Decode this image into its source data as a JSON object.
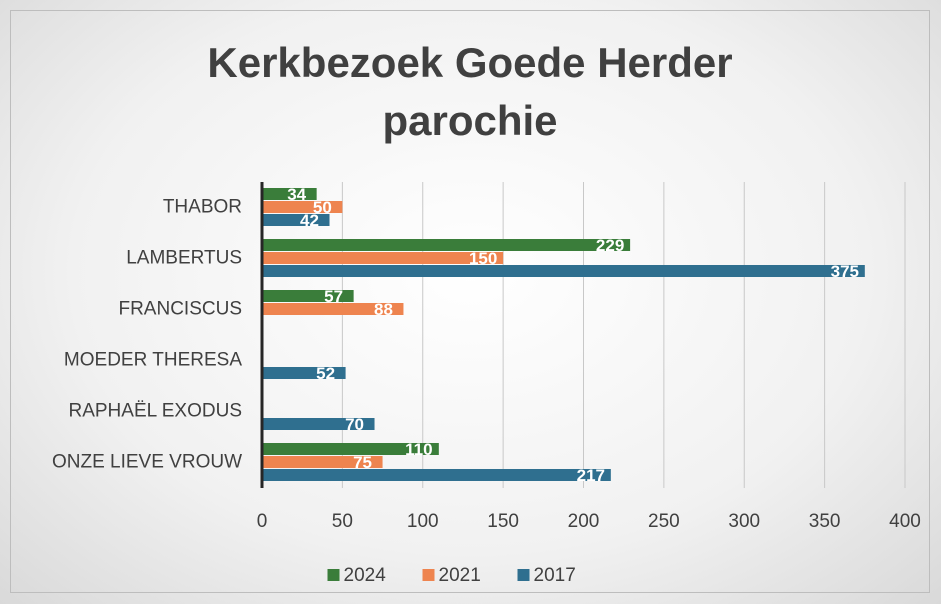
{
  "chart_data": {
    "type": "hbar",
    "title": "Kerkbezoek Goede Herder parochie",
    "categories": [
      "THABOR",
      "LAMBERTUS",
      "FRANCISCUS",
      "MOEDER THERESA",
      "RAPHAËL EXODUS",
      "ONZE LIEVE VROUW"
    ],
    "series": [
      {
        "name": "2024",
        "color": "#3a7d3a",
        "values": [
          34,
          229,
          57,
          null,
          null,
          110
        ]
      },
      {
        "name": "2021",
        "color": "#ee844f",
        "values": [
          50,
          150,
          88,
          null,
          null,
          75
        ]
      },
      {
        "name": "2017",
        "color": "#2f6f8f",
        "values": [
          42,
          375,
          null,
          52,
          70,
          217
        ]
      }
    ],
    "xlim": [
      0,
      400
    ],
    "xticks": [
      0,
      50,
      100,
      150,
      200,
      250,
      300,
      350,
      400
    ],
    "grid": true,
    "legend": "bottom"
  }
}
